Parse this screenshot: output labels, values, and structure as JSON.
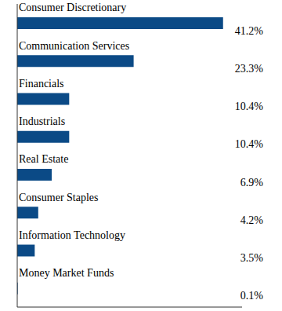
{
  "chart_data": {
    "type": "bar",
    "orientation": "horizontal",
    "categories": [
      "Consumer Discretionary",
      "Communication Services",
      "Financials",
      "Industrials",
      "Real Estate",
      "Consumer Staples",
      "Information Technology",
      "Money Market Funds"
    ],
    "values": [
      41.2,
      23.3,
      10.4,
      10.4,
      6.9,
      4.2,
      3.5,
      0.1
    ],
    "value_labels": [
      "41.2%",
      "23.3%",
      "10.4%",
      "10.4%",
      "6.9%",
      "4.2%",
      "3.5%",
      "0.1%"
    ],
    "data_labels": true,
    "color": "#0b4a86",
    "xlim": [
      0,
      45
    ],
    "xticks": [],
    "tick_labels": "y",
    "grid": false
  }
}
